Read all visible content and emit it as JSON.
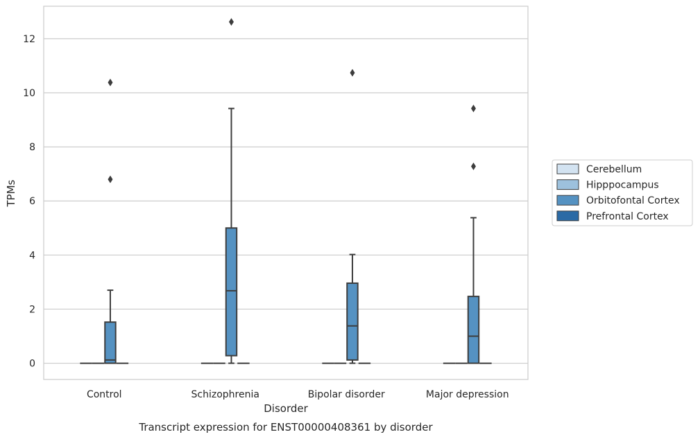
{
  "chart_data": {
    "type": "box",
    "title": "",
    "caption": "Transcript expression for ENST00000408361 by disorder",
    "xlabel": "Disorder",
    "ylabel": "TPMs",
    "ylim": [
      -0.6,
      13.2
    ],
    "yticks": [
      0,
      2,
      4,
      6,
      8,
      10,
      12
    ],
    "grid": true,
    "legend_position": "right",
    "categories": [
      "Control",
      "Schizophrenia",
      "Bipolar disorder",
      "Major depression"
    ],
    "series": [
      {
        "name": "Cerebellum",
        "color": "#d3e3f1",
        "boxes": [
          {
            "min": 0,
            "q1": 0,
            "median": 0,
            "q3": 0,
            "max": 0,
            "outliers": []
          },
          {
            "min": 0,
            "q1": 0,
            "median": 0,
            "q3": 0,
            "max": 0,
            "outliers": []
          },
          {
            "min": 0,
            "q1": 0,
            "median": 0,
            "q3": 0,
            "max": 0,
            "outliers": []
          },
          {
            "min": 0,
            "q1": 0,
            "median": 0,
            "q3": 0,
            "max": 0,
            "outliers": []
          }
        ]
      },
      {
        "name": "Hipppocampus",
        "color": "#9dc1dd",
        "boxes": [
          {
            "min": 0,
            "q1": 0,
            "median": 0,
            "q3": 0,
            "max": 0,
            "outliers": []
          },
          {
            "min": 0,
            "q1": 0,
            "median": 0,
            "q3": 0,
            "max": 0,
            "outliers": []
          },
          {
            "min": 0,
            "q1": 0,
            "median": 0,
            "q3": 0,
            "max": 0,
            "outliers": []
          },
          {
            "min": 0,
            "q1": 0,
            "median": 0,
            "q3": 0,
            "max": 0,
            "outliers": []
          }
        ]
      },
      {
        "name": "Orbitofontal Cortex",
        "color": "#5592c2",
        "boxes": [
          {
            "min": 0,
            "q1": 0,
            "median": 0.12,
            "q3": 1.52,
            "max": 2.7,
            "outliers": [
              6.8,
              10.38
            ]
          },
          {
            "min": 0,
            "q1": 0.28,
            "median": 2.68,
            "q3": 5.0,
            "max": 9.42,
            "outliers": [
              12.62
            ]
          },
          {
            "min": 0,
            "q1": 0.12,
            "median": 1.38,
            "q3": 2.96,
            "max": 4.02,
            "outliers": [
              10.74
            ]
          },
          {
            "min": 0,
            "q1": 0,
            "median": 1.0,
            "q3": 2.47,
            "max": 5.38,
            "outliers": [
              7.28,
              9.42
            ]
          }
        ]
      },
      {
        "name": "Prefrontal Cortex",
        "color": "#2b6aa5",
        "boxes": [
          {
            "min": 0,
            "q1": 0,
            "median": 0,
            "q3": 0,
            "max": 0,
            "outliers": []
          },
          {
            "min": 0,
            "q1": 0,
            "median": 0,
            "q3": 0,
            "max": 0,
            "outliers": []
          },
          {
            "min": 0,
            "q1": 0,
            "median": 0,
            "q3": 0,
            "max": 0,
            "outliers": []
          },
          {
            "min": 0,
            "q1": 0,
            "median": 0,
            "q3": 0,
            "max": 0,
            "outliers": []
          }
        ]
      }
    ]
  }
}
